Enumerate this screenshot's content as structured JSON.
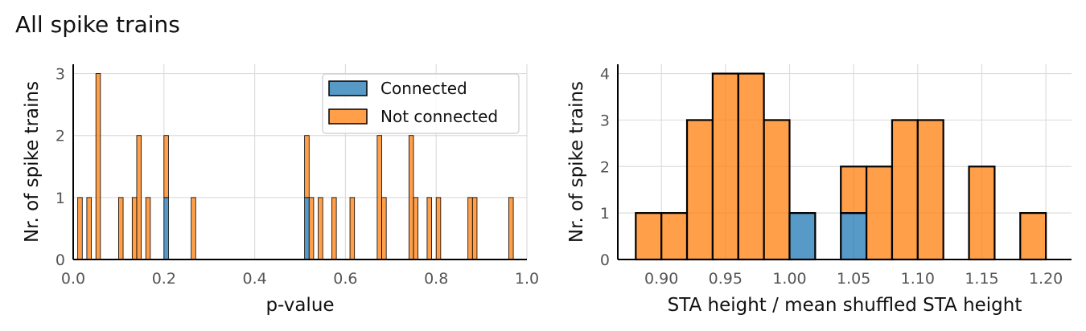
{
  "suptitle": "All spike trains",
  "chart_data": [
    {
      "type": "bar",
      "subtype": "stacked-histogram",
      "xlabel": "p-value",
      "ylabel": "Nr. of spike trains",
      "xlim": [
        0.0,
        1.0
      ],
      "ylim": [
        0,
        3.15
      ],
      "xticks": [
        "0.0",
        "0.2",
        "0.4",
        "0.6",
        "0.8",
        "1.0"
      ],
      "xtick_values": [
        0.0,
        0.2,
        0.4,
        0.6,
        0.8,
        1.0
      ],
      "yticks": [
        "0",
        "1",
        "2",
        "3"
      ],
      "ytick_values": [
        0,
        1,
        2,
        3
      ],
      "bin_width": 0.01,
      "grid": true,
      "legend": {
        "placement": "top-right",
        "entries": [
          "Connected",
          "Not connected"
        ]
      },
      "colors": {
        "Connected": "#1f77b4",
        "Not connected": "#ff7f0e"
      },
      "bins": [
        {
          "x": 0.01,
          "connected": 0,
          "not_connected": 1
        },
        {
          "x": 0.03,
          "connected": 0,
          "not_connected": 1
        },
        {
          "x": 0.05,
          "connected": 0,
          "not_connected": 3
        },
        {
          "x": 0.1,
          "connected": 0,
          "not_connected": 1
        },
        {
          "x": 0.13,
          "connected": 0,
          "not_connected": 1
        },
        {
          "x": 0.14,
          "connected": 0,
          "not_connected": 2
        },
        {
          "x": 0.16,
          "connected": 0,
          "not_connected": 1
        },
        {
          "x": 0.2,
          "connected": 1,
          "not_connected": 1
        },
        {
          "x": 0.26,
          "connected": 0,
          "not_connected": 1
        },
        {
          "x": 0.51,
          "connected": 1,
          "not_connected": 1
        },
        {
          "x": 0.52,
          "connected": 0,
          "not_connected": 1
        },
        {
          "x": 0.54,
          "connected": 0,
          "not_connected": 1
        },
        {
          "x": 0.57,
          "connected": 0,
          "not_connected": 1
        },
        {
          "x": 0.61,
          "connected": 0,
          "not_connected": 1
        },
        {
          "x": 0.67,
          "connected": 0,
          "not_connected": 2
        },
        {
          "x": 0.68,
          "connected": 0,
          "not_connected": 1
        },
        {
          "x": 0.74,
          "connected": 0,
          "not_connected": 2
        },
        {
          "x": 0.75,
          "connected": 0,
          "not_connected": 1
        },
        {
          "x": 0.78,
          "connected": 0,
          "not_connected": 1
        },
        {
          "x": 0.8,
          "connected": 0,
          "not_connected": 1
        },
        {
          "x": 0.87,
          "connected": 0,
          "not_connected": 1
        },
        {
          "x": 0.88,
          "connected": 0,
          "not_connected": 1
        },
        {
          "x": 0.96,
          "connected": 0,
          "not_connected": 1
        }
      ]
    },
    {
      "type": "bar",
      "subtype": "stacked-histogram",
      "xlabel": "STA height / mean shuffled STA height",
      "ylabel": "Nr. of spike trains",
      "xlim": [
        0.866,
        1.22
      ],
      "ylim": [
        0,
        4.2
      ],
      "xticks": [
        "0.90",
        "0.95",
        "1.00",
        "1.05",
        "1.10",
        "1.15",
        "1.20"
      ],
      "xtick_values": [
        0.9,
        0.95,
        1.0,
        1.05,
        1.1,
        1.15,
        1.2
      ],
      "yticks": [
        "0",
        "1",
        "2",
        "3",
        "4"
      ],
      "ytick_values": [
        0,
        1,
        2,
        3,
        4
      ],
      "bin_width": 0.02,
      "grid": true,
      "colors": {
        "Connected": "#1f77b4",
        "Not connected": "#ff7f0e"
      },
      "bins": [
        {
          "x": 0.88,
          "connected": 0,
          "not_connected": 1
        },
        {
          "x": 0.9,
          "connected": 0,
          "not_connected": 1
        },
        {
          "x": 0.92,
          "connected": 0,
          "not_connected": 3
        },
        {
          "x": 0.94,
          "connected": 0,
          "not_connected": 4
        },
        {
          "x": 0.96,
          "connected": 0,
          "not_connected": 4
        },
        {
          "x": 0.98,
          "connected": 0,
          "not_connected": 3
        },
        {
          "x": 1.0,
          "connected": 1,
          "not_connected": 0
        },
        {
          "x": 1.04,
          "connected": 1,
          "not_connected": 1
        },
        {
          "x": 1.06,
          "connected": 0,
          "not_connected": 2
        },
        {
          "x": 1.08,
          "connected": 0,
          "not_connected": 3
        },
        {
          "x": 1.1,
          "connected": 0,
          "not_connected": 3
        },
        {
          "x": 1.14,
          "connected": 0,
          "not_connected": 2
        },
        {
          "x": 1.18,
          "connected": 0,
          "not_connected": 1
        }
      ]
    }
  ]
}
